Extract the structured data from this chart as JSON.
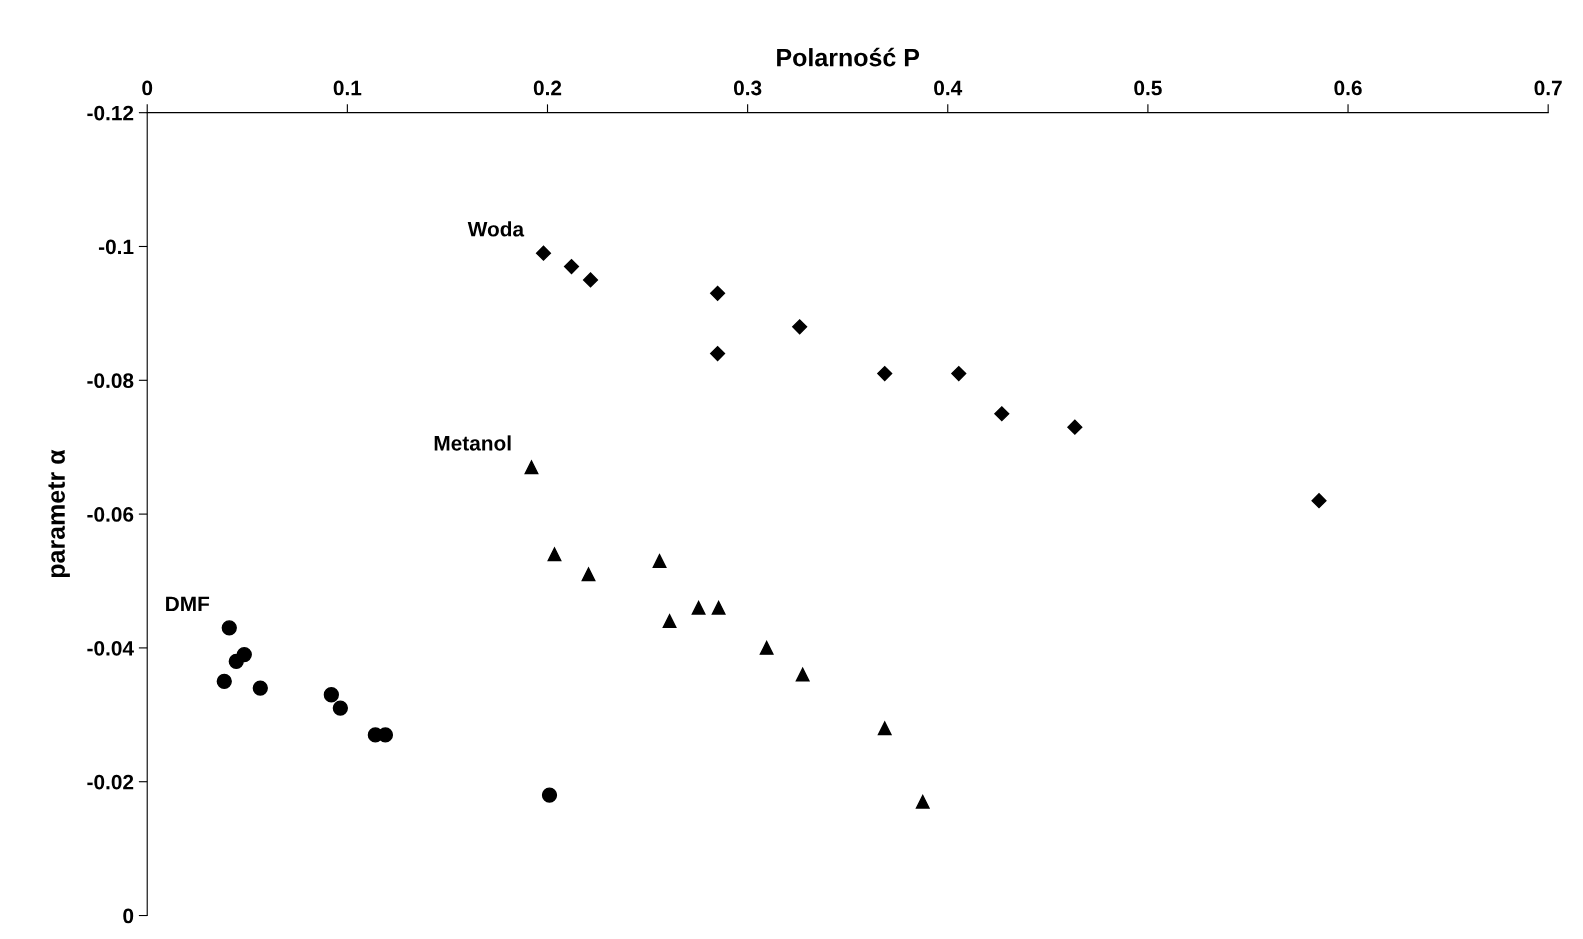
{
  "chart_data": {
    "type": "scatter",
    "xlabel": "Polarność P",
    "ylabel": "parametr α",
    "xlim": [
      0,
      0.7
    ],
    "ylim": [
      0,
      -0.12
    ],
    "xticks": [
      0,
      0.1,
      0.2,
      0.3,
      0.4,
      0.5,
      0.6,
      0.7
    ],
    "yticks": [
      -0.12,
      -0.1,
      -0.08,
      -0.06,
      -0.04,
      -0.02,
      0
    ],
    "grid": false,
    "legend": false,
    "series": [
      {
        "name": "Woda",
        "color": "#000000",
        "marker": "diamond",
        "x": [
          0.198,
          0.212,
          0.2215,
          0.285,
          0.285,
          0.326,
          0.3685,
          0.4055,
          0.427,
          0.4635,
          0.5855
        ],
        "values": [
          -0.099,
          -0.097,
          -0.095,
          -0.093,
          -0.084,
          -0.088,
          -0.081,
          -0.081,
          -0.075,
          -0.073,
          -0.062
        ]
      },
      {
        "name": "Metanol",
        "color": "#000000",
        "marker": "triangle",
        "x": [
          0.192,
          0.2035,
          0.2205,
          0.256,
          0.261,
          0.2755,
          0.2855,
          0.3095,
          0.3275,
          0.3685,
          0.3875
        ],
        "values": [
          -0.067,
          -0.054,
          -0.051,
          -0.053,
          -0.044,
          -0.046,
          -0.046,
          -0.04,
          -0.036,
          -0.028,
          -0.017
        ]
      },
      {
        "name": "DMF",
        "color": "#000000",
        "marker": "circle",
        "x": [
          0.041,
          0.0385,
          0.0445,
          0.0485,
          0.0565,
          0.092,
          0.0965,
          0.114,
          0.119,
          0.201
        ],
        "values": [
          -0.043,
          -0.035,
          -0.038,
          -0.039,
          -0.034,
          -0.033,
          -0.031,
          -0.027,
          -0.027,
          -0.018
        ]
      }
    ]
  }
}
